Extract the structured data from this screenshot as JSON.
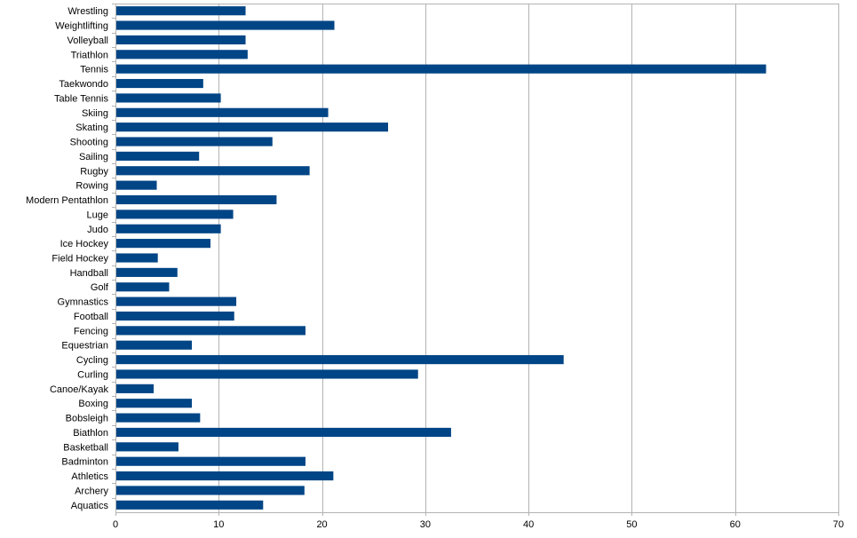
{
  "chart_data": {
    "type": "bar",
    "orientation": "horizontal",
    "title": "",
    "xlabel": "",
    "ylabel": "",
    "xlim": [
      0,
      70
    ],
    "x_ticks": [
      0,
      10,
      20,
      30,
      40,
      50,
      60,
      70
    ],
    "grid": true,
    "legend": "none",
    "bar_color": "#004586",
    "categories": [
      "Wrestling",
      "Weightlifting",
      "Volleyball",
      "Triathlon",
      "Tennis",
      "Taekwondo",
      "Table Tennis",
      "Skiing",
      "Skating",
      "Shooting",
      "Sailing",
      "Rugby",
      "Rowing",
      "Modern Pentathlon",
      "Luge",
      "Judo",
      "Ice Hockey",
      "Field Hockey",
      "Handball",
      "Golf",
      "Gymnastics",
      "Football",
      "Fencing",
      "Equestrian",
      "Cycling",
      "Curling",
      "Canoe/Kayak",
      "Boxing",
      "Bobsleigh",
      "Biathlon",
      "Basketball",
      "Badminton",
      "Athletics",
      "Archery",
      "Aquatics"
    ],
    "values": [
      12.6,
      21.2,
      12.6,
      12.8,
      63.0,
      8.5,
      10.2,
      20.6,
      26.4,
      15.2,
      8.1,
      18.8,
      4.0,
      15.6,
      11.4,
      10.2,
      9.2,
      4.1,
      6.0,
      5.2,
      11.7,
      11.5,
      18.4,
      7.4,
      43.4,
      29.3,
      3.7,
      7.4,
      8.2,
      32.5,
      6.1,
      18.4,
      21.1,
      18.3,
      14.3
    ]
  }
}
